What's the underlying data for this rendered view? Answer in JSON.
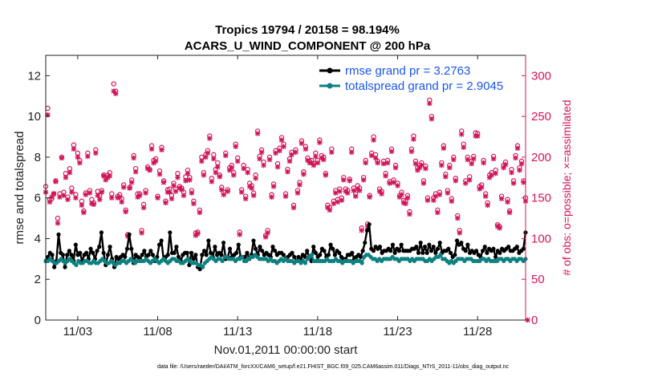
{
  "chart_data": {
    "type": "line",
    "title_line1": "Tropics 19794 / 20158 = 98.194%",
    "title_line2": "ACARS_U_WIND_COMPONENT @ 200 hPa",
    "xlabel": "Nov.01,2011 00:00:00 start",
    "ylabel": "rmse and totalspread",
    "y2label": "# of obs: o=possible; ×=assimilated",
    "footnote": "data file: /Users/raeder/DAI/ATM_forcXX/CAM6_setup/f.e21.FHIST_BGC.f09_025.CAM6assim.011/Diags_NTrS_2011-11/obs_diag_output.nc",
    "xlim": [
      1.0,
      31.0
    ],
    "ylim": [
      0,
      13
    ],
    "y2lim": [
      0,
      325
    ],
    "x_ticks": [
      3,
      8,
      13,
      18,
      23,
      28
    ],
    "x_tick_labels": [
      "11/03",
      "11/08",
      "11/13",
      "11/18",
      "11/23",
      "11/28"
    ],
    "y_ticks": [
      0,
      2,
      4,
      6,
      8,
      10,
      12
    ],
    "y_tick_labels": [
      "0",
      "2",
      "4",
      "6",
      "8",
      "10",
      "12"
    ],
    "y2_ticks": [
      0,
      50,
      100,
      150,
      200,
      250,
      300
    ],
    "y2_tick_labels": [
      "0",
      "50",
      "100",
      "150",
      "200",
      "250",
      "300"
    ],
    "colors": {
      "rmse": "#000000",
      "spread": "#0d8080",
      "obs": "#d1155a",
      "legend_text": "#1b55e6"
    },
    "series": [
      {
        "name": "rmse",
        "legend_label": "rmse grand pr = 3.2763",
        "values": [
          2.9,
          3.1,
          3.3,
          3.2,
          2.6,
          2.9,
          4.2,
          3.3,
          3.2,
          2.6,
          3.2,
          3.4,
          3.2,
          2.9,
          3.7,
          3.2,
          3.3,
          2.9,
          3.2,
          3.3,
          3.0,
          3.5,
          3.3,
          3.0,
          3.4,
          3.6,
          4.3,
          3.3,
          2.7,
          3.2,
          3.6,
          3.0,
          2.6,
          3.1,
          3.0,
          3.1,
          3.2,
          3.1,
          3.5,
          4.2,
          3.5,
          2.8,
          3.2,
          3.1,
          3.0,
          3.2,
          3.4,
          3.1,
          3.2,
          3.4,
          3.2,
          2.9,
          3.1,
          3.7,
          3.9,
          3.0,
          3.1,
          3.2,
          4.3,
          3.3,
          3.3,
          3.6,
          3.1,
          2.9,
          3.2,
          3.3,
          3.3,
          2.7,
          3.3,
          3.0,
          3.2,
          2.6,
          2.5,
          3.2,
          3.4,
          3.2,
          3.9,
          3.3,
          3.1,
          3.6,
          3.2,
          3.3,
          3.2,
          3.8,
          3.0,
          3.1,
          3.5,
          3.1,
          3.2,
          3.3,
          3.7,
          3.1,
          3.1,
          3.1,
          3.3,
          3.0,
          3.2,
          3.9,
          3.5,
          3.2,
          3.6,
          3.4,
          3.2,
          3.3,
          3.2,
          3.1,
          3.6,
          3.4,
          3.2,
          3.3,
          3.3,
          3.2,
          3.0,
          3.1,
          3.2,
          3.3,
          3.1,
          2.9,
          3.1,
          3.0,
          3.2,
          3.1,
          3.4,
          3.1,
          2.9,
          3.6,
          3.3,
          3.1,
          3.2,
          3.5,
          3.4,
          3.1,
          3.2,
          3.7,
          3.5,
          3.2,
          3.4,
          3.3,
          3.1,
          3.0,
          3.0,
          3.2,
          3.2,
          3.3,
          3.0,
          3.1,
          3.2,
          3.1,
          3.4,
          3.8,
          4.4,
          4.7,
          3.5,
          3.4,
          3.6,
          3.5,
          3.6,
          3.3,
          3.4,
          3.4,
          3.5,
          3.4,
          3.7,
          3.3,
          3.5,
          3.4,
          3.7,
          3.4,
          3.4,
          3.4,
          3.4,
          3.5,
          3.5,
          3.6,
          3.3,
          3.8,
          3.3,
          3.6,
          3.3,
          3.7,
          3.4,
          3.6,
          3.3,
          3.5,
          3.8,
          3.3,
          3.4,
          3.4,
          3.5,
          3.3,
          3.1,
          3.2,
          3.9,
          3.7,
          3.8,
          3.5,
          3.4,
          3.7,
          3.3,
          3.4,
          3.3,
          3.4,
          3.2,
          3.1,
          3.4,
          3.6,
          3.3,
          3.5,
          3.4,
          3.5,
          3.1,
          3.4,
          3.3,
          3.5,
          3.4,
          3.5,
          3.6,
          3.4,
          3.4,
          3.5,
          3.6,
          3.3,
          3.4,
          3.5,
          4.3
        ]
      },
      {
        "name": "totalspread",
        "legend_label": "totalspread grand pr = 2.9045",
        "values": [
          2.9,
          2.9,
          3.0,
          2.9,
          2.8,
          2.8,
          2.9,
          3.0,
          2.9,
          2.8,
          2.9,
          3.0,
          2.9,
          2.8,
          2.7,
          2.9,
          2.8,
          2.8,
          2.9,
          2.9,
          2.8,
          2.8,
          2.9,
          2.8,
          2.8,
          2.9,
          3.0,
          2.9,
          2.8,
          2.8,
          2.9,
          2.8,
          2.7,
          2.8,
          2.8,
          2.9,
          2.9,
          2.8,
          2.9,
          3.0,
          2.9,
          2.8,
          2.9,
          2.9,
          2.9,
          2.9,
          3.0,
          2.9,
          2.8,
          2.9,
          3.0,
          2.9,
          2.8,
          2.9,
          3.0,
          2.9,
          2.8,
          2.9,
          3.0,
          3.0,
          2.9,
          2.9,
          2.8,
          2.8,
          2.9,
          3.0,
          2.9,
          2.8,
          2.8,
          2.8,
          2.7,
          2.7,
          2.6,
          2.8,
          2.9,
          3.0,
          3.1,
          3.0,
          2.9,
          3.0,
          3.0,
          2.9,
          3.1,
          3.1,
          3.0,
          3.0,
          3.0,
          2.9,
          3.0,
          3.0,
          3.1,
          2.9,
          2.9,
          3.0,
          3.1,
          3.1,
          3.2,
          3.1,
          3.0,
          3.0,
          3.0,
          3.0,
          2.9,
          3.0,
          2.9,
          2.9,
          2.8,
          2.9,
          3.0,
          2.9,
          3.0,
          2.9,
          2.9,
          2.9,
          2.8,
          2.9,
          2.9,
          2.8,
          2.9,
          2.8,
          3.0,
          3.1,
          3.2,
          2.9,
          2.9,
          2.9,
          2.9,
          2.9,
          2.9,
          3.0,
          2.9,
          2.9,
          2.9,
          3.0,
          2.9,
          2.9,
          2.8,
          2.9,
          2.9,
          2.9,
          2.9,
          2.8,
          2.9,
          2.9,
          2.9,
          2.8,
          3.1,
          3.2,
          3.2,
          3.1,
          3.0,
          3.0,
          2.9,
          3.0,
          2.9,
          3.0,
          3.0,
          3.0,
          3.0,
          3.1,
          3.0,
          3.0,
          2.9,
          3.0,
          3.0,
          3.0,
          3.0,
          2.9,
          3.0,
          2.9,
          3.0,
          3.0,
          3.0,
          3.0,
          2.9,
          2.9,
          3.0,
          2.9,
          3.0,
          3.1,
          3.1,
          3.2,
          3.0,
          3.0,
          2.9,
          2.8,
          2.9,
          2.8,
          2.9,
          3.0,
          3.0,
          3.0,
          2.9,
          3.0,
          3.0,
          3.0,
          2.9,
          2.9,
          2.9,
          2.9,
          3.0,
          3.0,
          2.9,
          3.0,
          2.9,
          2.9,
          2.9,
          2.9,
          3.0,
          3.0,
          2.9,
          3.0,
          3.0,
          2.9,
          3.0,
          3.0,
          2.9,
          3.0,
          3.0,
          2.9,
          3.0
        ]
      }
    ],
    "obs_possible": [
      164,
      260,
      148,
      149,
      155,
      171,
      125,
      155,
      200,
      157,
      180,
      151,
      186,
      162,
      215,
      154,
      205,
      196,
      146,
      134,
      156,
      205,
      159,
      148,
      144,
      209,
      158,
      153,
      159,
      178,
      175,
      178,
      181,
      155,
      290,
      281,
      152,
      154,
      149,
      166,
      135,
      105,
      163,
      172,
      202,
      186,
      155,
      155,
      110,
      142,
      159,
      188,
      185,
      214,
      196,
      198,
      152,
      183,
      212,
      171,
      146,
      160,
      161,
      153,
      168,
      161,
      180,
      164,
      162,
      157,
      176,
      184,
      175,
      159,
      146,
      107,
      108,
      135,
      200,
      181,
      203,
      208,
      226,
      174,
      203,
      185,
      193,
      178,
      163,
      157,
      205,
      160,
      187,
      190,
      181,
      216,
      199,
      108,
      160,
      190,
      152,
      185,
      168,
      165,
      156,
      178,
      232,
      201,
      209,
      194,
      104,
      110,
      200,
      154,
      167,
      208,
      192,
      211,
      224,
      216,
      155,
      185,
      198,
      206,
      141,
      209,
      159,
      169,
      220,
      182,
      213,
      199,
      195,
      196,
      192,
      205,
      196,
      221,
      202,
      200,
      180,
      141,
      138,
      210,
      146,
      159,
      148,
      161,
      150,
      175,
      161,
      159,
      173,
      210,
      162,
      155,
      165,
      162,
      113,
      175,
      196,
      118,
      153,
      205,
      225,
      203,
      195,
      161,
      158,
      195,
      180,
      196,
      170,
      210,
      172,
      190,
      168,
      153,
      157,
      147,
      146,
      153,
      133,
      210,
      226,
      195,
      187,
      190,
      193,
      171,
      189,
      150,
      270,
      250,
      150,
      155,
      135,
      157,
      193,
      214,
      179,
      159,
      190,
      149,
      200,
      174,
      128,
      110,
      232,
      216,
      171,
      200,
      176,
      195,
      201,
      230,
      229,
      164,
      166,
      196,
      155,
      144,
      178,
      181,
      201,
      184,
      117,
      115,
      152,
      190,
      194,
      148,
      134,
      185,
      171,
      202,
      214,
      187,
      195,
      171,
      150
    ],
    "obs_assimilated": [
      157,
      252,
      145,
      151,
      155,
      170,
      119,
      151,
      199,
      153,
      175,
      148,
      181,
      157,
      210,
      150,
      200,
      193,
      141,
      132,
      154,
      201,
      156,
      143,
      142,
      205,
      153,
      148,
      157,
      177,
      172,
      175,
      177,
      150,
      281,
      278,
      150,
      151,
      145,
      163,
      133,
      103,
      162,
      169,
      199,
      182,
      151,
      153,
      107,
      138,
      156,
      186,
      184,
      210,
      193,
      195,
      150,
      179,
      209,
      169,
      144,
      157,
      157,
      149,
      165,
      158,
      175,
      162,
      160,
      153,
      171,
      180,
      172,
      156,
      143,
      104,
      106,
      132,
      195,
      178,
      200,
      205,
      223,
      170,
      198,
      181,
      188,
      176,
      160,
      154,
      202,
      158,
      184,
      187,
      178,
      213,
      195,
      105,
      157,
      186,
      149,
      181,
      164,
      162,
      153,
      174,
      229,
      198,
      206,
      190,
      102,
      107,
      197,
      151,
      164,
      205,
      188,
      208,
      221,
      213,
      152,
      182,
      195,
      203,
      138,
      206,
      156,
      166,
      217,
      179,
      210,
      196,
      193,
      193,
      190,
      201,
      193,
      218,
      199,
      197,
      178,
      138,
      135,
      206,
      143,
      156,
      145,
      158,
      147,
      172,
      158,
      156,
      171,
      206,
      159,
      152,
      161,
      159,
      110,
      172,
      193,
      115,
      151,
      202,
      221,
      199,
      193,
      158,
      155,
      192,
      177,
      193,
      168,
      207,
      169,
      187,
      165,
      151,
      154,
      144,
      143,
      150,
      130,
      207,
      222,
      192,
      184,
      187,
      190,
      168,
      186,
      147,
      266,
      247,
      147,
      152,
      132,
      154,
      190,
      211,
      176,
      156,
      187,
      146,
      197,
      171,
      125,
      107,
      228,
      212,
      168,
      197,
      172,
      192,
      198,
      226,
      226,
      161,
      163,
      193,
      152,
      141,
      175,
      178,
      198,
      180,
      115,
      113,
      149,
      187,
      191,
      145,
      132,
      181,
      168,
      199,
      211,
      184,
      192,
      169,
      146,
      0
    ]
  }
}
